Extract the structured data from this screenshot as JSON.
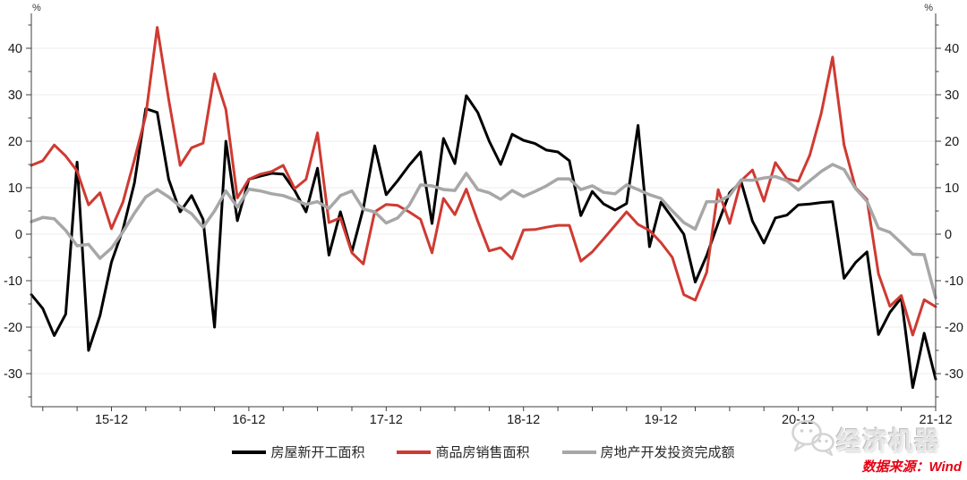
{
  "chart_data": {
    "type": "line",
    "title": "",
    "unit_label": "%",
    "x_start": "2015-05",
    "x_end": "2021-12",
    "x_frequency": "monthly",
    "x_tick_labels": [
      "15-12",
      "16-12",
      "17-12",
      "18-12",
      "19-12",
      "20-12",
      "21-12"
    ],
    "y_ticks": [
      -30,
      -20,
      -10,
      0,
      10,
      20,
      30,
      40
    ],
    "ylim": [
      -37.5,
      47.5
    ],
    "grid": "horizontal",
    "legend_position": "bottom",
    "series": [
      {
        "name": "房屋新开工面积",
        "color": "#000000",
        "values": [
          -13.0,
          -16.0,
          -21.8,
          -17.2,
          15.5,
          -25.0,
          -17.5,
          -6.0,
          1.0,
          11.0,
          27.0,
          26.2,
          11.8,
          4.8,
          8.3,
          3.2,
          -20.0,
          20.0,
          2.9,
          11.8,
          12.5,
          13.1,
          12.9,
          9.4,
          4.8,
          14.2,
          -4.5,
          4.8,
          -3.8,
          5.6,
          19.0,
          8.5,
          11.5,
          14.8,
          17.7,
          2.3,
          20.6,
          15.2,
          29.8,
          26.2,
          20.0,
          15.0,
          21.5,
          20.2,
          19.5,
          18.1,
          17.7,
          15.8,
          4.0,
          9.2,
          6.5,
          5.2,
          6.6,
          23.4,
          -2.7,
          6.9,
          3.5,
          0.0,
          -10.3,
          -4.6,
          2.4,
          8.9,
          11.3,
          2.8,
          -1.9,
          3.5,
          4.1,
          6.3,
          6.5,
          6.8,
          7.0,
          -9.5,
          -6.1,
          -3.8,
          -21.6,
          -16.8,
          -13.7,
          -33.0,
          -21.3,
          -31.2
        ]
      },
      {
        "name": "商品房销售面积",
        "color": "#cf3a32",
        "values": [
          14.8,
          15.8,
          19.2,
          16.8,
          13.6,
          6.3,
          8.9,
          1.2,
          6.9,
          16.0,
          25.5,
          44.5,
          29.0,
          14.8,
          18.6,
          19.6,
          34.5,
          26.8,
          7.8,
          11.8,
          12.9,
          13.5,
          14.8,
          9.8,
          11.8,
          21.8,
          2.5,
          3.5,
          -4.0,
          -6.4,
          4.8,
          6.4,
          6.2,
          4.8,
          3.2,
          -4.0,
          7.7,
          4.2,
          9.7,
          2.8,
          -3.6,
          -2.9,
          -5.3,
          0.9,
          1.0,
          1.5,
          1.9,
          1.9,
          -5.8,
          -3.8,
          -1.0,
          1.9,
          4.8,
          2.1,
          0.8,
          -1.8,
          -5.0,
          -13.0,
          -14.2,
          -8.2,
          9.6,
          2.3,
          11.5,
          13.8,
          7.1,
          15.4,
          11.9,
          11.4,
          17.0,
          26.0,
          38.1,
          19.2,
          10.0,
          7.5,
          -8.5,
          -15.5,
          -13.2,
          -21.7,
          -14.1,
          -15.6
        ]
      },
      {
        "name": "房地产开发投资完成额",
        "color": "#a7a7a7",
        "values": [
          2.7,
          3.6,
          3.3,
          0.8,
          -2.5,
          -2.2,
          -5.2,
          -3.0,
          0.5,
          4.5,
          8.0,
          9.6,
          8.0,
          6.0,
          4.4,
          1.5,
          5.0,
          9.3,
          5.8,
          9.7,
          9.3,
          8.7,
          8.3,
          7.4,
          6.4,
          7.0,
          5.5,
          8.3,
          9.3,
          5.4,
          4.8,
          2.4,
          3.5,
          6.2,
          10.6,
          10.4,
          9.6,
          9.4,
          13.1,
          9.6,
          8.9,
          7.5,
          9.4,
          8.1,
          9.2,
          10.4,
          11.9,
          11.9,
          9.6,
          10.4,
          9.0,
          8.7,
          10.6,
          9.6,
          8.5,
          7.7,
          5.0,
          2.5,
          1.1,
          7.0,
          7.0,
          8.3,
          11.7,
          11.6,
          12.1,
          12.4,
          11.5,
          9.5,
          11.5,
          13.5,
          15.0,
          13.9,
          9.8,
          7.1,
          1.3,
          0.4,
          -1.9,
          -4.3,
          -4.4,
          -13.7
        ]
      }
    ]
  },
  "watermark": {
    "brand": "经济机器",
    "icon": "wechat-icon"
  },
  "source": {
    "text": "数据来源：Wind"
  }
}
